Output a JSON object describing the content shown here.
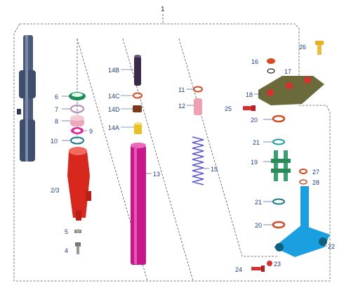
{
  "assembly": {
    "number": "1"
  },
  "callouts": [
    {
      "id": "c2_3",
      "text": "2/3"
    },
    {
      "id": "c4",
      "text": "4"
    },
    {
      "id": "c5",
      "text": "5"
    },
    {
      "id": "c6",
      "text": "6"
    },
    {
      "id": "c7",
      "text": "7"
    },
    {
      "id": "c8",
      "text": "8"
    },
    {
      "id": "c9",
      "text": "9"
    },
    {
      "id": "c10",
      "text": "10"
    },
    {
      "id": "c11",
      "text": "11"
    },
    {
      "id": "c12",
      "text": "12"
    },
    {
      "id": "c13",
      "text": "13"
    },
    {
      "id": "c14A",
      "text": "14A"
    },
    {
      "id": "c14B",
      "text": "14B"
    },
    {
      "id": "c14C",
      "text": "14C"
    },
    {
      "id": "c14D",
      "text": "14D"
    },
    {
      "id": "c15",
      "text": "15"
    },
    {
      "id": "c16",
      "text": "16"
    },
    {
      "id": "c17",
      "text": "17"
    },
    {
      "id": "c18",
      "text": "18"
    },
    {
      "id": "c19",
      "text": "19"
    },
    {
      "id": "c20a",
      "text": "20"
    },
    {
      "id": "c20b",
      "text": "20"
    },
    {
      "id": "c21a",
      "text": "21"
    },
    {
      "id": "c21b",
      "text": "21"
    },
    {
      "id": "c22",
      "text": "22"
    },
    {
      "id": "c23",
      "text": "23"
    },
    {
      "id": "c24",
      "text": "24"
    },
    {
      "id": "c25",
      "text": "25"
    },
    {
      "id": "c26",
      "text": "26"
    },
    {
      "id": "c27",
      "text": "27"
    },
    {
      "id": "c28",
      "text": "28"
    }
  ],
  "colors": {
    "label": "#1c3f8a",
    "outer_tube": "#4a5a7a",
    "fork_slider": "#d8281e",
    "inner_tube": "#c8178a",
    "spring": "#5a5ad0",
    "top_bridge": "#6a6a3a",
    "steering_stem": "#1aa0e0",
    "bearing_cage": "#3aa070",
    "bolt_gold": "#e8b020",
    "seal_green": "#1f8a55",
    "washer_orange": "#d84a20"
  }
}
